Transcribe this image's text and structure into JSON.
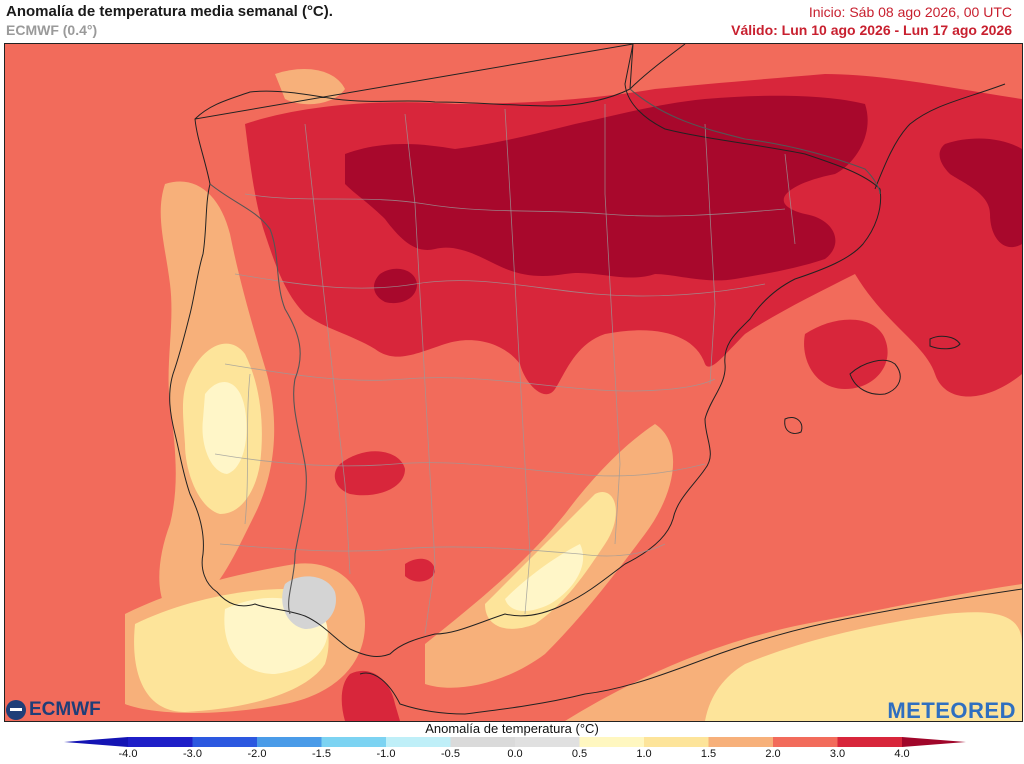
{
  "header": {
    "title": "Anomalía de temperatura media semanal (°C).",
    "model": "ECMWF (0.4°)",
    "init": "Inicio: Sáb 08 ago 2026, 00 UTC",
    "valid": "Válido: Lun 10 ago 2026 - Lun 17 ago 2026"
  },
  "logos": {
    "left": "ECMWF",
    "right": "METEORED"
  },
  "legend": {
    "title": "Anomalía de temperatura (°C)",
    "ticks": [
      "-4.0",
      "-3.0",
      "-2.0",
      "-1.5",
      "-1.0",
      "-0.5",
      "0.0",
      "0.5",
      "1.0",
      "1.5",
      "2.0",
      "3.0",
      "4.0"
    ],
    "colors": [
      "#1f1fc8",
      "#2c58e0",
      "#4a9be8",
      "#7cd3f2",
      "#bfeff8",
      "#dadada",
      "#e0e0e0",
      "#fff7c0",
      "#fde49a",
      "#f7b07a",
      "#f26b5b",
      "#d8263b"
    ],
    "end_low": "#1414b4",
    "end_high": "#a0062a"
  },
  "map": {
    "colors": {
      "c20": "#f26b5b",
      "c30": "#d8263b",
      "c40": "#a8082c",
      "c15": "#f7b07a",
      "c10": "#fde49a",
      "c05": "#fff6c8",
      "c00": "#d4d4d4"
    }
  }
}
